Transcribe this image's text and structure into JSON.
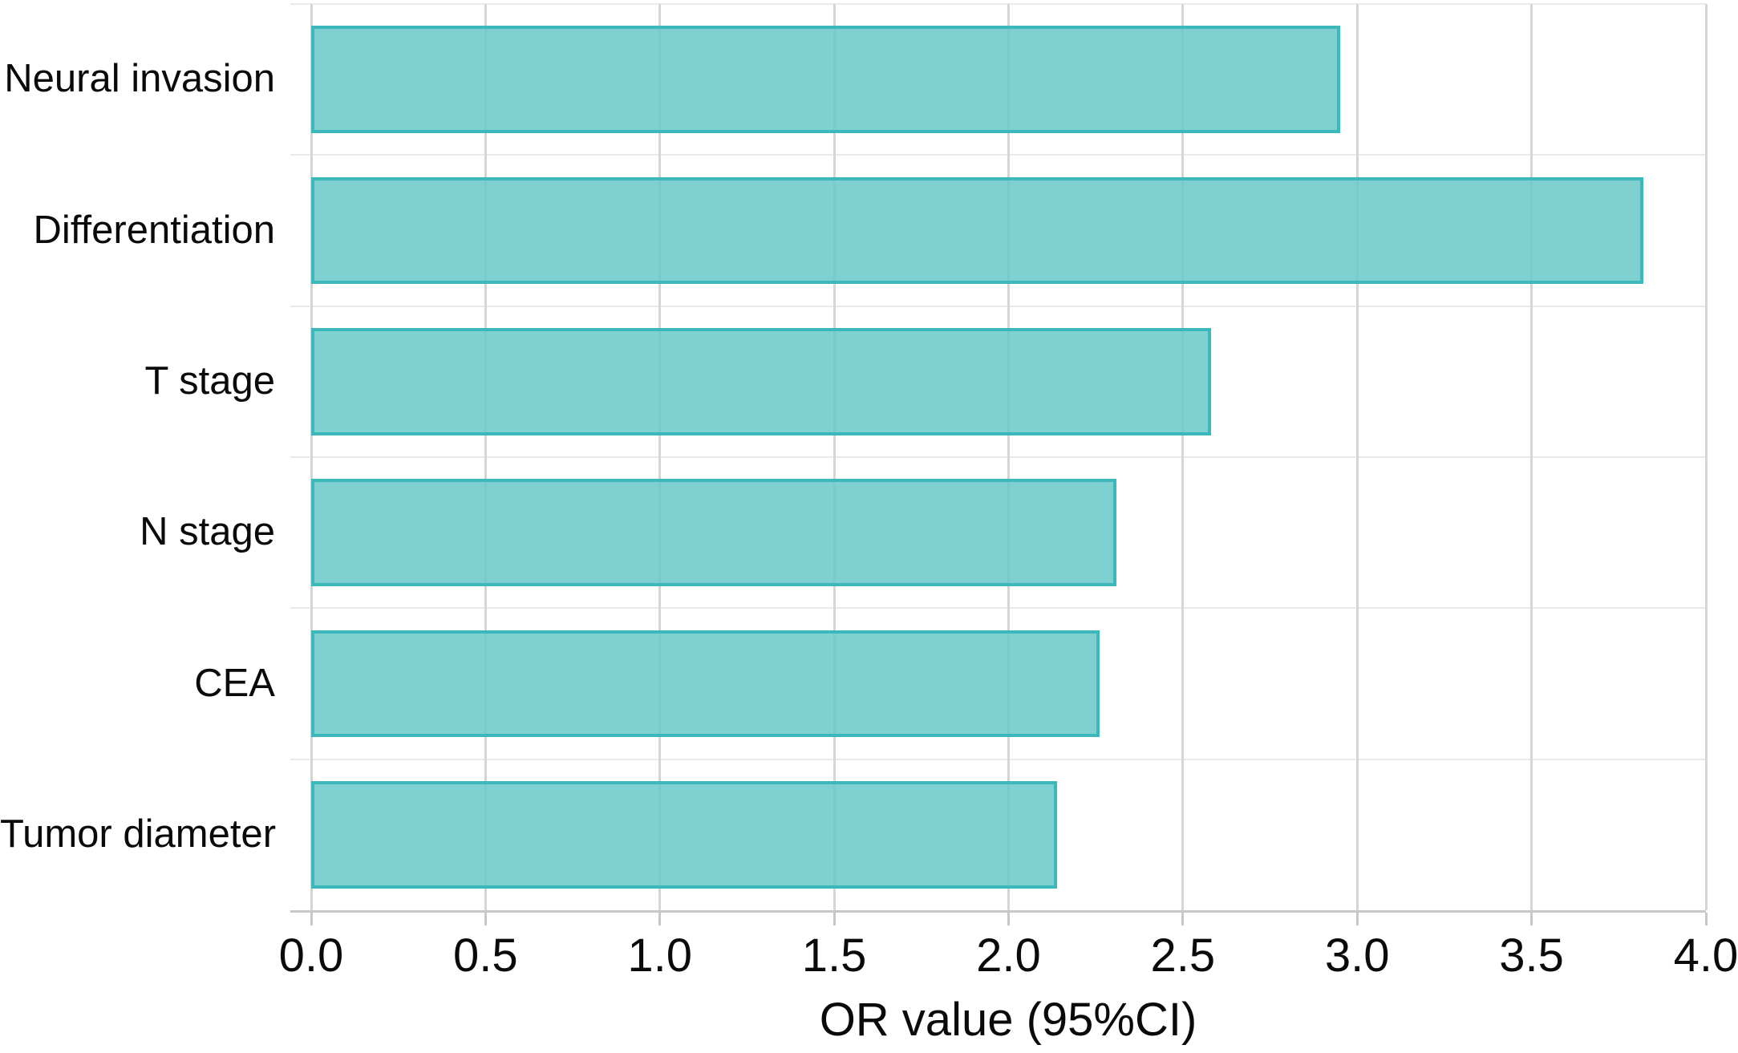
{
  "figure": {
    "background": "#ffffff"
  },
  "chart_data": {
    "type": "bar",
    "orientation": "horizontal",
    "title": "",
    "xlabel": "OR value (95%CI)",
    "ylabel": "",
    "categories": [
      "Neural invasion",
      "Differentiation",
      "T stage",
      "N stage",
      "CEA",
      "Tumor diameter"
    ],
    "values": [
      2.95,
      3.82,
      2.58,
      2.31,
      2.26,
      2.14
    ],
    "xlim": [
      0.0,
      4.0
    ],
    "xtick_labels": [
      "0.0",
      "0.5",
      "1.0",
      "1.5",
      "2.0",
      "2.5",
      "3.0",
      "3.5",
      "4.0"
    ],
    "grid": true,
    "legend_position": "none",
    "colors": {
      "bar_fill": "#7ed0d1",
      "bar_fill_rgba": "rgba(103,200,201,0.85)",
      "bar_edge": "#3db8ba",
      "vertical_gridline": "#d5d5d5",
      "horizontal_gridline": "#e9e9e9",
      "axis_line": "#c7c7c7",
      "text": "#0a0a0a"
    }
  }
}
